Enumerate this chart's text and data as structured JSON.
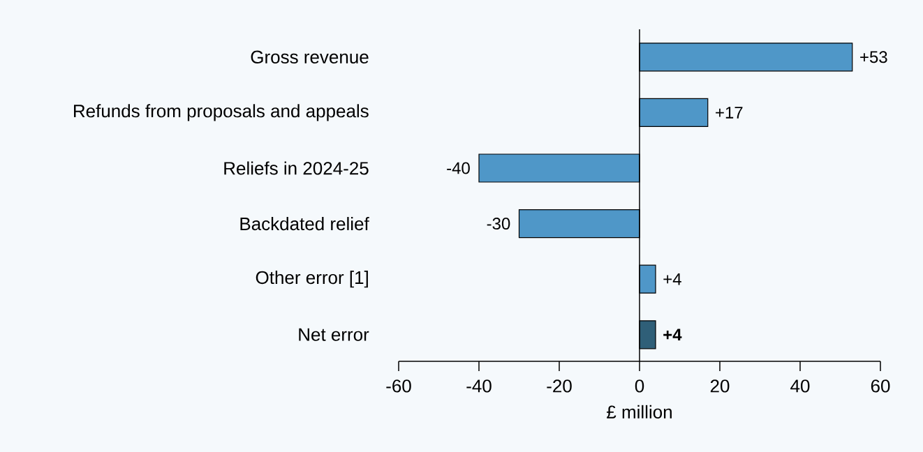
{
  "chart_data": {
    "type": "bar",
    "orientation": "horizontal",
    "xlabel": "£ million",
    "categories": [
      "Gross revenue",
      "Refunds from proposals and appeals",
      "Reliefs in 2024-25",
      "Backdated relief",
      "Other error [1]",
      "Net error"
    ],
    "values": [
      53,
      17,
      -40,
      -30,
      4,
      4
    ],
    "colors": [
      "#4f97c8",
      "#4f97c8",
      "#4f97c8",
      "#4f97c8",
      "#4f97c8",
      "#2f5f78"
    ],
    "value_labels": [
      "+53",
      "+17",
      "-40",
      "-30",
      "+4",
      "**+4**"
    ],
    "xlim": [
      -60,
      60
    ],
    "xticks": [
      -60,
      -40,
      -20,
      0,
      20,
      40,
      60
    ]
  }
}
